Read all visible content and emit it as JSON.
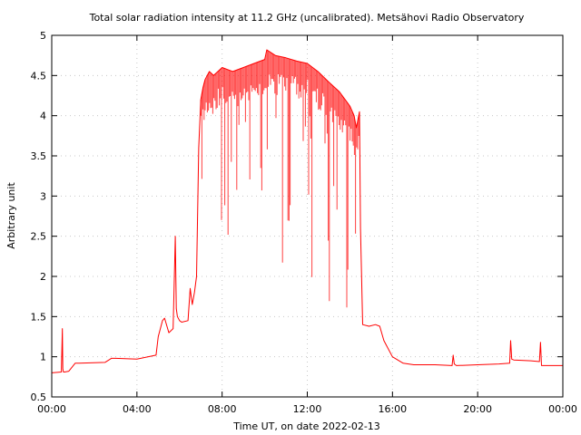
{
  "chart_data": {
    "type": "line",
    "title": "Total solar radiation intensity at 11.2 GHz (uncalibrated). Metsähovi Radio Observatory",
    "xlabel": "Time UT, on date 2022-02-13",
    "ylabel": "Arbitrary unit",
    "xlim": [
      0,
      24
    ],
    "ylim": [
      0.5,
      5
    ],
    "grid": true,
    "x_ticks": [
      0,
      4,
      8,
      12,
      16,
      20,
      24
    ],
    "x_tick_labels": [
      "00:00",
      "04:00",
      "08:00",
      "12:00",
      "16:00",
      "20:00",
      "00:00"
    ],
    "y_ticks": [
      0.5,
      1,
      1.5,
      2,
      2.5,
      3,
      3.5,
      4,
      4.5,
      5
    ],
    "y_tick_labels": [
      "0.5",
      "1",
      "1.5",
      "2",
      "2.5",
      "3",
      "3.5",
      "4",
      "4.5",
      "5"
    ],
    "series": [
      {
        "color": "#ff0000",
        "x": [
          0.0,
          0.45,
          0.5,
          0.52,
          0.55,
          0.6,
          0.8,
          1.1,
          1.3,
          2.5,
          2.8,
          3.0,
          4.0,
          4.9,
          5.0,
          5.2,
          5.3,
          5.5,
          5.7,
          5.8,
          5.85,
          5.9,
          6.0,
          6.1,
          6.4,
          6.5,
          6.6,
          6.7,
          6.8,
          6.9,
          7.0,
          7.1,
          7.2,
          7.4,
          7.6,
          8.0,
          8.5,
          9.0,
          9.5,
          10.0,
          10.1,
          10.5,
          11.0,
          11.5,
          12.0,
          12.5,
          13.0,
          13.5,
          14.0,
          14.2,
          14.3,
          14.45,
          14.5,
          14.6,
          14.9,
          15.2,
          15.4,
          15.6,
          16.0,
          16.5,
          17.0,
          18.0,
          18.8,
          18.85,
          18.9,
          19.0,
          20.0,
          21.0,
          21.5,
          21.55,
          21.6,
          21.7,
          22.5,
          22.9,
          22.95,
          23.0,
          24.0
        ],
        "y": [
          0.8,
          0.81,
          1.35,
          0.85,
          0.81,
          0.81,
          0.82,
          0.92,
          0.92,
          0.93,
          0.98,
          0.98,
          0.97,
          1.02,
          1.25,
          1.45,
          1.48,
          1.3,
          1.35,
          2.5,
          1.6,
          1.5,
          1.45,
          1.43,
          1.45,
          1.85,
          1.65,
          1.8,
          2.0,
          3.6,
          4.2,
          4.35,
          4.45,
          4.55,
          4.5,
          4.6,
          4.55,
          4.6,
          4.65,
          4.7,
          4.82,
          4.75,
          4.72,
          4.68,
          4.65,
          4.55,
          4.42,
          4.3,
          4.12,
          4.0,
          3.85,
          4.05,
          2.6,
          1.4,
          1.38,
          1.4,
          1.38,
          1.2,
          1.0,
          0.92,
          0.9,
          0.9,
          0.89,
          1.02,
          0.91,
          0.89,
          0.9,
          0.91,
          0.92,
          1.2,
          0.97,
          0.96,
          0.95,
          0.94,
          1.18,
          0.89,
          0.89
        ]
      }
    ]
  }
}
